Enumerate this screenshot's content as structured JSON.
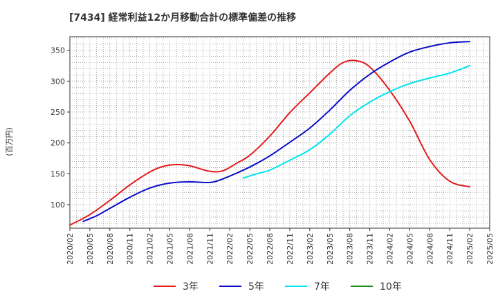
{
  "chart_data": {
    "type": "line",
    "title": "[7434]  経常利益12か月移動合計の標準偏差の推移",
    "ylabel": "(百万円)",
    "xlabel": "",
    "ylim": [
      62,
      372
    ],
    "yticks": [
      100,
      150,
      200,
      250,
      300,
      350
    ],
    "xlim": [
      "2020-02",
      "2025-05"
    ],
    "xticks": [
      "2020/02",
      "2020/05",
      "2020/08",
      "2020/11",
      "2021/02",
      "2021/05",
      "2021/08",
      "2021/11",
      "2022/02",
      "2022/05",
      "2022/08",
      "2022/11",
      "2023/02",
      "2023/05",
      "2023/08",
      "2023/11",
      "2024/02",
      "2024/05",
      "2024/08",
      "2024/11",
      "2025/02",
      "2025/05"
    ],
    "grid": true,
    "legend": "bottom",
    "series": [
      {
        "name": "3年",
        "color": "#e31a1c",
        "x": [
          "2020-02",
          "2020-05",
          "2020-08",
          "2020-11",
          "2021-02",
          "2021-04",
          "2021-06",
          "2021-08",
          "2021-11",
          "2022-01",
          "2022-03",
          "2022-05",
          "2022-08",
          "2022-11",
          "2023-02",
          "2023-05",
          "2023-07",
          "2023-09",
          "2023-11",
          "2024-02",
          "2024-05",
          "2024-08",
          "2024-11",
          "2025-02"
        ],
        "values": [
          67,
          84,
          107,
          132,
          153,
          162,
          165,
          163,
          154,
          155,
          167,
          180,
          211,
          249,
          281,
          313,
          330,
          333,
          323,
          285,
          235,
          173,
          138,
          129
        ]
      },
      {
        "name": "5年",
        "color": "#0a0ac8",
        "x": [
          "2020-04",
          "2020-06",
          "2020-08",
          "2020-11",
          "2021-02",
          "2021-05",
          "2021-08",
          "2021-11",
          "2022-01",
          "2022-05",
          "2022-08",
          "2022-11",
          "2023-02",
          "2023-05",
          "2023-08",
          "2023-11",
          "2024-02",
          "2024-05",
          "2024-08",
          "2024-11",
          "2025-02"
        ],
        "values": [
          73,
          82,
          94,
          112,
          127,
          135,
          137,
          136,
          142,
          161,
          179,
          201,
          224,
          253,
          285,
          311,
          331,
          347,
          356,
          362,
          364
        ]
      },
      {
        "name": "7年",
        "color": "#00e5ee",
        "x": [
          "2022-04",
          "2022-06",
          "2022-08",
          "2022-11",
          "2023-02",
          "2023-05",
          "2023-08",
          "2023-11",
          "2024-02",
          "2024-05",
          "2024-08",
          "2024-11",
          "2025-02"
        ],
        "values": [
          143,
          150,
          156,
          172,
          189,
          214,
          244,
          266,
          283,
          296,
          305,
          313,
          325
        ]
      },
      {
        "name": "10年",
        "color": "#1a8c1a",
        "x": [],
        "values": []
      }
    ]
  }
}
